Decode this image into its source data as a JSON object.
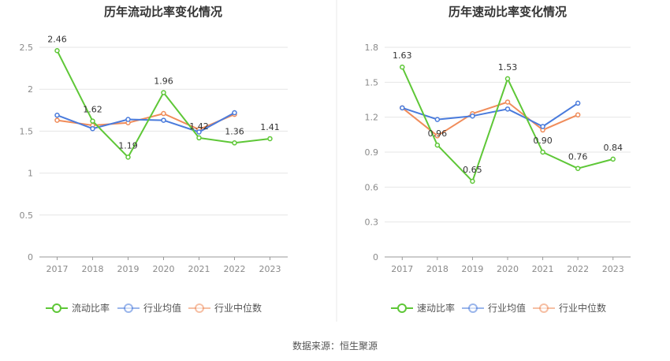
{
  "source": "数据来源：恒生聚源",
  "chart_data": [
    {
      "type": "line",
      "title": "历年流动比率变化情况",
      "categories": [
        "2017",
        "2018",
        "2019",
        "2020",
        "2021",
        "2022",
        "2023"
      ],
      "ylim": [
        0,
        2.5
      ],
      "yticks": [
        "0",
        "0.5",
        "1",
        "1.5",
        "2",
        "2.5"
      ],
      "yticks_values": [
        0,
        0.5,
        1,
        1.5,
        2,
        2.5
      ],
      "grid": true,
      "legend": "bottom",
      "series": [
        {
          "name": "流动比率",
          "color": "#5ec737",
          "values": [
            2.46,
            1.62,
            1.19,
            1.96,
            1.42,
            1.36,
            1.41
          ],
          "labels": [
            "2.46",
            "1.62",
            "1.19",
            "1.96",
            "1.42",
            "1.36",
            "1.41"
          ]
        },
        {
          "name": "行业均值",
          "color": "#4a7bdc",
          "values": [
            1.69,
            1.53,
            1.64,
            1.63,
            1.49,
            1.72,
            null
          ]
        },
        {
          "name": "行业中位数",
          "color": "#f08c5a",
          "values": [
            1.63,
            1.57,
            1.6,
            1.71,
            1.52,
            1.7,
            null
          ]
        }
      ]
    },
    {
      "type": "line",
      "title": "历年速动比率变化情况",
      "categories": [
        "2017",
        "2018",
        "2019",
        "2020",
        "2021",
        "2022",
        "2023"
      ],
      "ylim": [
        0,
        1.8
      ],
      "yticks": [
        "0",
        "0.3",
        "0.6",
        "0.9",
        "1.2",
        "1.5",
        "1.8"
      ],
      "yticks_values": [
        0,
        0.3,
        0.6,
        0.9,
        1.2,
        1.5,
        1.8
      ],
      "grid": true,
      "legend": "bottom",
      "series": [
        {
          "name": "速动比率",
          "color": "#5ec737",
          "values": [
            1.63,
            0.96,
            0.65,
            1.53,
            0.9,
            0.76,
            0.84
          ],
          "labels": [
            "1.63",
            "0.96",
            "0.65",
            "1.53",
            "0.90",
            "0.76",
            "0.84"
          ]
        },
        {
          "name": "行业均值",
          "color": "#4a7bdc",
          "values": [
            1.28,
            1.18,
            1.21,
            1.27,
            1.12,
            1.32,
            null
          ]
        },
        {
          "name": "行业中位数",
          "color": "#f08c5a",
          "values": [
            1.28,
            1.04,
            1.23,
            1.33,
            1.09,
            1.22,
            null
          ]
        }
      ]
    }
  ]
}
